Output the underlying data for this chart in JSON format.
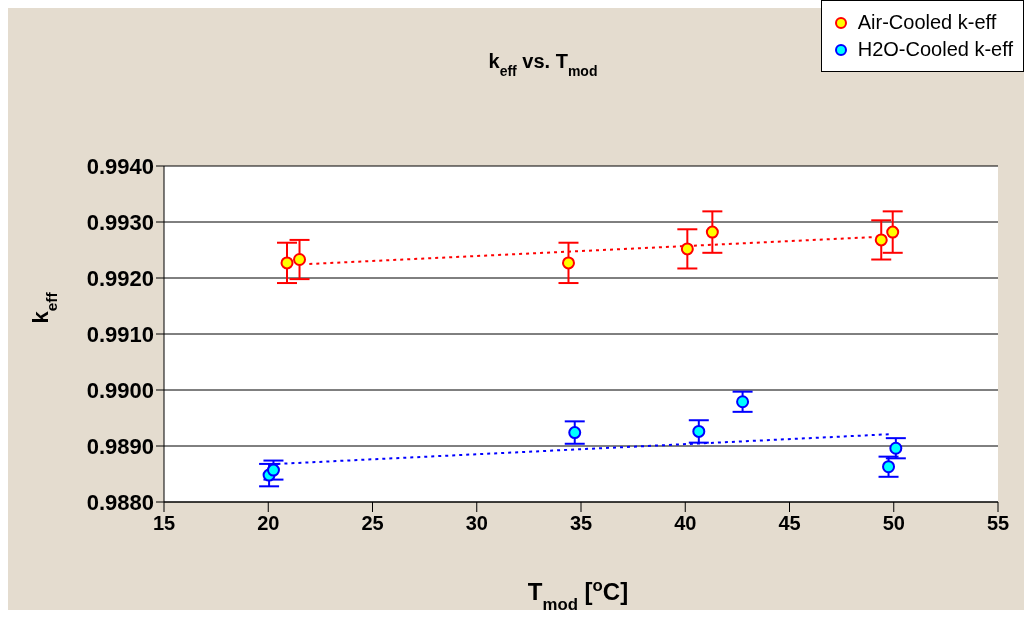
{
  "chart_data": {
    "type": "scatter",
    "title": "k$_{eff}$ vs. T$_{mod}$",
    "xlabel": "T$_{mod}$ [$^{o}$C]",
    "ylabel": "k$_{eff}$",
    "xlim": [
      15,
      55
    ],
    "xticks": [
      15,
      20,
      25,
      30,
      35,
      40,
      45,
      50,
      55
    ],
    "ylim": [
      0.988,
      0.994
    ],
    "yticks": [
      {
        "value": 0.988,
        "label": "0.9880"
      },
      {
        "value": 0.989,
        "label": "0.9890"
      },
      {
        "value": 0.99,
        "label": "0.9900"
      },
      {
        "value": 0.991,
        "label": "0.9910"
      },
      {
        "value": 0.992,
        "label": "0.9920"
      },
      {
        "value": 0.993,
        "label": "0.9930"
      },
      {
        "value": 0.994,
        "label": "0.9940"
      }
    ],
    "grid": "y",
    "legend": "top right",
    "marker": "circle",
    "series": [
      {
        "name": "Air-Cooled k-eff",
        "color": "#ffff00",
        "x": [
          20.9,
          21.5,
          34.4,
          40.1,
          41.3,
          49.4,
          49.95
        ],
        "values": [
          0.99227,
          0.99233,
          0.99227,
          0.99252,
          0.99282,
          0.99268,
          0.99282
        ],
        "errors": [
          0.00036,
          0.00035,
          0.00036,
          0.00035,
          0.00037,
          0.00035,
          0.00037
        ]
      },
      {
        "name": "H2O-Cooled k-eff",
        "color": "#00ffff",
        "x": [
          20.04,
          20.25,
          34.7,
          40.65,
          42.75,
          49.75,
          50.1
        ],
        "values": [
          0.98848,
          0.98857,
          0.98924,
          0.98926,
          0.98979,
          0.98863,
          0.98896
        ],
        "errors": [
          0.0002,
          0.00017,
          0.0002,
          0.0002,
          0.00018,
          0.00018,
          0.00018
        ]
      },
      {
        "type": "line",
        "color": "#ff0000",
        "x": [
          21.97,
          49.0
        ],
        "values": [
          0.99225,
          0.99273
        ],
        "line_style": "dotted",
        "marker": "none"
      },
      {
        "type": "line",
        "color": "#0000ff",
        "x": [
          20.44,
          49.8
        ],
        "values": [
          0.98868,
          0.98921
        ],
        "line_style": "dotted",
        "marker": "none"
      }
    ]
  }
}
